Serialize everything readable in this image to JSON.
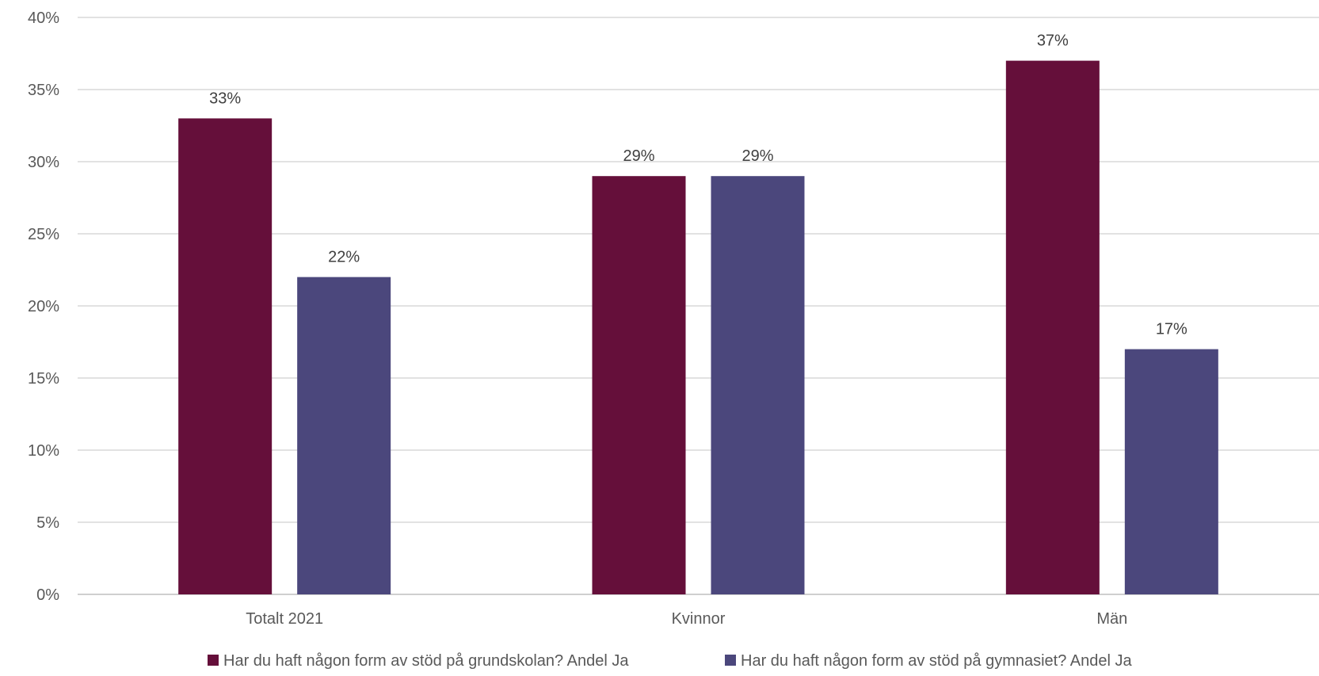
{
  "chart_data": {
    "type": "bar",
    "categories": [
      "Totalt 2021",
      "Kvinnor",
      "Män"
    ],
    "series": [
      {
        "name": "Har du haft någon form av stöd på grundskolan? Andel Ja",
        "values": [
          33,
          29,
          37
        ],
        "color": "#650f3a"
      },
      {
        "name": "Har du haft någon form av stöd på gymnasiet? Andel Ja",
        "values": [
          22,
          29,
          17
        ],
        "color": "#4b477c"
      }
    ],
    "ylim": [
      0,
      40
    ],
    "y_ticks": [
      0,
      5,
      10,
      15,
      20,
      25,
      30,
      35,
      40
    ],
    "y_tick_labels": [
      "0%",
      "5%",
      "10%",
      "15%",
      "20%",
      "25%",
      "30%",
      "35%",
      "40%"
    ],
    "data_labels": [
      [
        "33%",
        "29%",
        "37%"
      ],
      [
        "22%",
        "29%",
        "17%"
      ]
    ],
    "title": "",
    "xlabel": "",
    "ylabel": "",
    "grid": true,
    "legend": "bottom"
  }
}
